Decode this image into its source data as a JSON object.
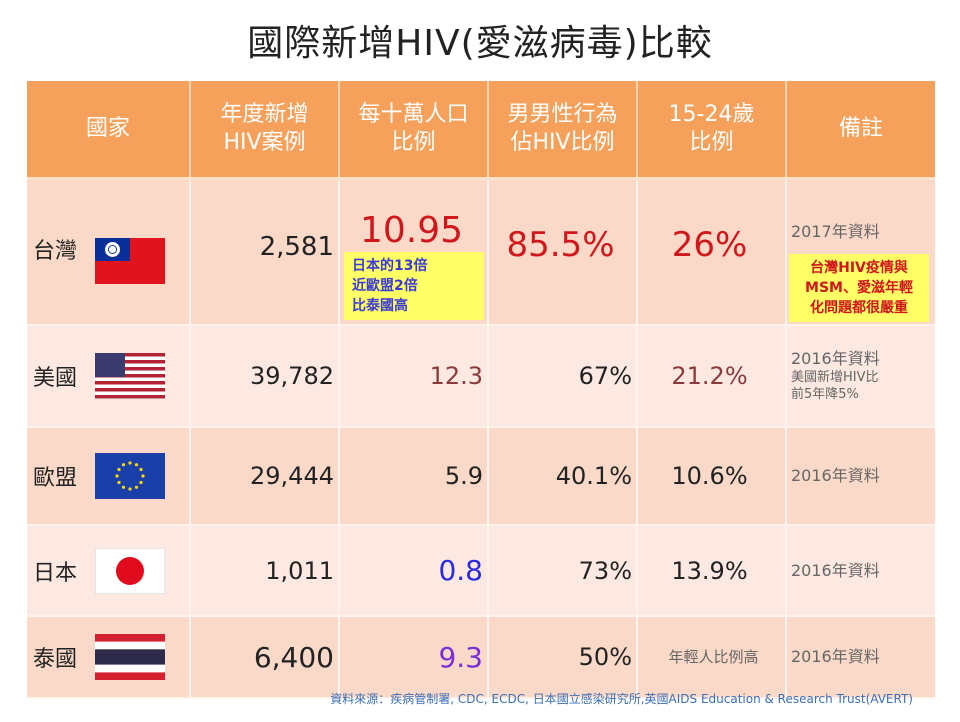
{
  "title": "國際新增HIV(愛滋病毒)比較",
  "headers": [
    "國家",
    "年度新增\nHIV案例",
    "每十萬人口\n比例",
    "男男性行為\n佔HIV比例",
    "15-24歲\n比例",
    "備註"
  ],
  "rows": [
    {
      "country": "台灣",
      "cases": "2,581",
      "per100k": "10.95",
      "msm": "85.5%",
      "youth": "26%",
      "note": "2017年資料",
      "callout": "日本的13倍\n近歐盟2倍\n比泰國高",
      "note_callout": "台灣HIV疫情與\nMSM、愛滋年輕\n化問題都很嚴重"
    },
    {
      "country": "美國",
      "cases": "39,782",
      "per100k": "12.3",
      "msm": "67%",
      "youth": "21.2%",
      "note": "2016年資料",
      "note_sub": "美國新增HIV比\n前5年降5%"
    },
    {
      "country": "歐盟",
      "cases": "29,444",
      "per100k": "5.9",
      "msm": "40.1%",
      "youth": "10.6%",
      "note": "2016年資料"
    },
    {
      "country": "日本",
      "cases": "1,011",
      "per100k": "0.8",
      "msm": "73%",
      "youth": "13.9%",
      "note": "2016年資料"
    },
    {
      "country": "泰國",
      "cases": "6,400",
      "per100k": "9.3",
      "msm": "50%",
      "youth": "年輕人比例高",
      "note": "2016年資料"
    }
  ],
  "source": "資料來源：疾病管制署, CDC, ECDC, 日本國立感染研究所,英國AIDS Education & Research Trust(AVERT)",
  "colors": {
    "header": "#f6a15b",
    "highlight": "#ffff66",
    "red": "#d0181c",
    "blue": "#2a2ae0",
    "purple": "#7b2fd6",
    "brown": "#8a3a3a"
  }
}
